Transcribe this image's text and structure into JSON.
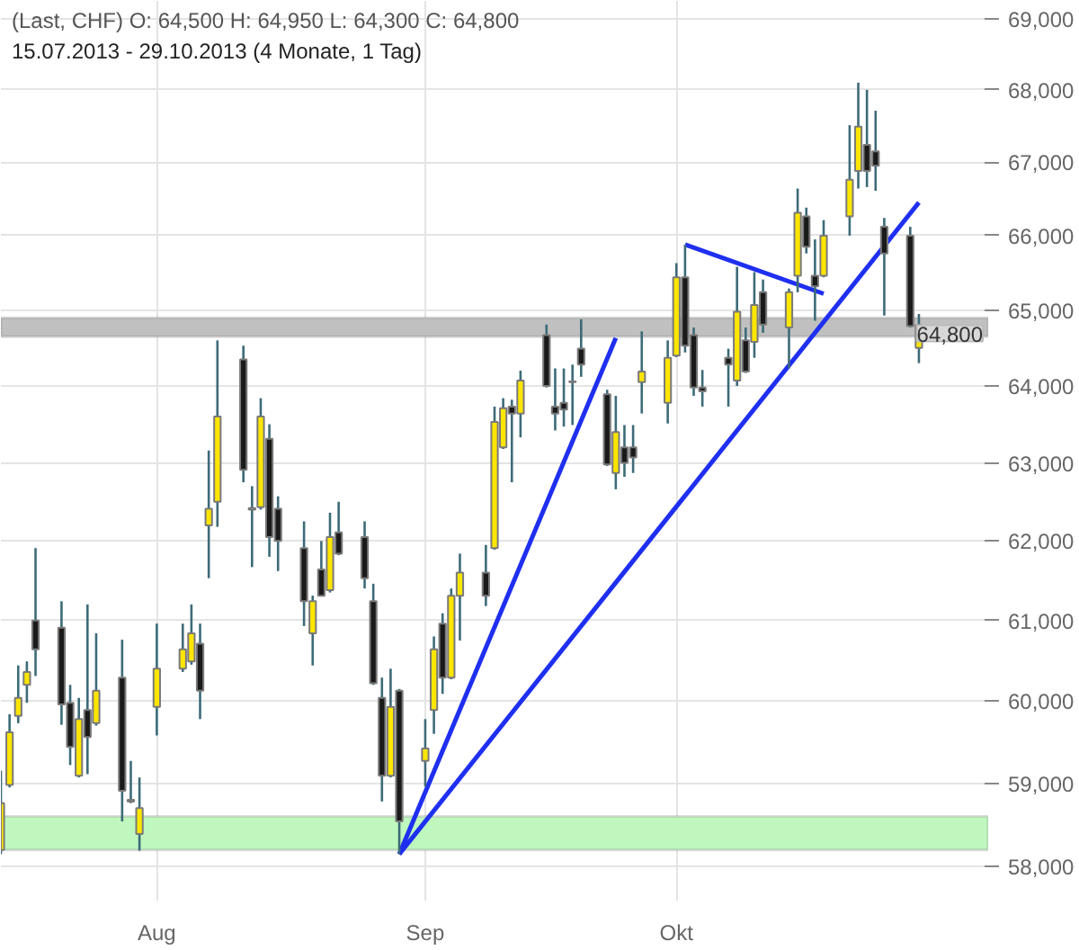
{
  "chart_data": {
    "type": "candlestick",
    "title": "(Last, CHF)  O: 64,500  H: 64,950  L: 64,300  C: 64,800",
    "subtitle": "15.07.2013 - 29.10.2013 (4 Monate, 1 Tag)",
    "x": [
      "2013-07-15",
      "2013-07-16",
      "2013-07-17",
      "2013-07-18",
      "2013-07-19",
      "2013-07-22",
      "2013-07-23",
      "2013-07-24",
      "2013-07-25",
      "2013-07-26",
      "2013-07-29",
      "2013-07-30",
      "2013-07-31",
      "2013-08-02",
      "2013-08-05",
      "2013-08-06",
      "2013-08-07",
      "2013-08-08",
      "2013-08-09",
      "2013-08-12",
      "2013-08-13",
      "2013-08-14",
      "2013-08-15",
      "2013-08-16",
      "2013-08-19",
      "2013-08-20",
      "2013-08-21",
      "2013-08-22",
      "2013-08-23",
      "2013-08-26",
      "2013-08-27",
      "2013-08-28",
      "2013-08-29",
      "2013-08-30",
      "2013-09-02",
      "2013-09-03",
      "2013-09-04",
      "2013-09-05",
      "2013-09-06",
      "2013-09-09",
      "2013-09-10",
      "2013-09-11",
      "2013-09-12",
      "2013-09-13",
      "2013-09-16",
      "2013-09-17",
      "2013-09-18",
      "2013-09-19",
      "2013-09-20",
      "2013-09-23",
      "2013-09-24",
      "2013-09-25",
      "2013-09-26",
      "2013-09-27",
      "2013-09-30",
      "2013-10-01",
      "2013-10-02",
      "2013-10-03",
      "2013-10-04",
      "2013-10-07",
      "2013-10-08",
      "2013-10-09",
      "2013-10-10",
      "2013-10-11",
      "2013-10-14",
      "2013-10-15",
      "2013-10-16",
      "2013-10-17",
      "2013-10-18",
      "2013-10-21",
      "2013-10-22",
      "2013-10-23",
      "2013-10-24",
      "2013-10-25",
      "2013-10-28",
      "2013-10-29"
    ],
    "ohlc": [
      [
        58200,
        59150,
        58150,
        58760
      ],
      [
        58980,
        59840,
        58950,
        59620
      ],
      [
        59820,
        60440,
        59730,
        60040
      ],
      [
        60200,
        60490,
        59980,
        60360
      ],
      [
        61000,
        61910,
        60310,
        60640
      ],
      [
        60910,
        61240,
        59710,
        59960
      ],
      [
        59980,
        60200,
        59220,
        59440
      ],
      [
        59090,
        60040,
        59070,
        59780
      ],
      [
        59890,
        61200,
        59110,
        59560
      ],
      [
        59730,
        60840,
        59700,
        60130
      ],
      [
        60290,
        60760,
        58540,
        58910
      ],
      [
        58800,
        59270,
        58760,
        58780
      ],
      [
        58390,
        59070,
        58190,
        58700
      ],
      [
        59930,
        60960,
        59580,
        60400
      ],
      [
        60400,
        60960,
        60360,
        60640
      ],
      [
        60490,
        61200,
        60450,
        60840
      ],
      [
        60710,
        60960,
        59780,
        60130
      ],
      [
        62200,
        63160,
        61530,
        62410
      ],
      [
        62500,
        64600,
        62180,
        63600
      ],
      [
        64350,
        64530,
        62750,
        62910
      ],
      [
        62420,
        62700,
        61670,
        62400
      ],
      [
        62430,
        63840,
        62400,
        63600
      ],
      [
        63310,
        63500,
        61800,
        62050
      ],
      [
        62410,
        62570,
        61620,
        62000
      ],
      [
        61910,
        62250,
        60930,
        61240
      ],
      [
        60840,
        61310,
        60440,
        61240
      ],
      [
        61640,
        62000,
        61300,
        61310
      ],
      [
        61380,
        62360,
        61350,
        62050
      ],
      [
        62110,
        62500,
        61820,
        61840
      ],
      [
        62050,
        62250,
        61400,
        61530
      ],
      [
        61240,
        61460,
        60200,
        60220
      ],
      [
        60040,
        60290,
        58780,
        59090
      ],
      [
        59090,
        60400,
        59070,
        59930
      ],
      [
        60130,
        60150,
        58150,
        58540
      ],
      [
        59270,
        59780,
        58960,
        59420
      ],
      [
        59890,
        60800,
        59600,
        60640
      ],
      [
        60960,
        61090,
        60090,
        60290
      ],
      [
        60290,
        61400,
        60270,
        61310
      ],
      [
        61310,
        61840,
        60750,
        61600
      ],
      [
        61600,
        61950,
        61180,
        61310
      ],
      [
        61910,
        63730,
        61890,
        63530
      ],
      [
        63200,
        63840,
        63180,
        63710
      ],
      [
        63730,
        63820,
        62750,
        63640
      ],
      [
        63640,
        64200,
        63330,
        64070
      ],
      [
        64670,
        64810,
        63980,
        64000
      ],
      [
        63730,
        64230,
        63420,
        63640
      ],
      [
        63780,
        64230,
        63470,
        63690
      ],
      [
        64060,
        64280,
        63490,
        64050
      ],
      [
        64490,
        64880,
        64120,
        64280
      ],
      [
        63890,
        63950,
        62960,
        62980
      ],
      [
        62870,
        63870,
        62660,
        63400
      ],
      [
        63200,
        63490,
        62820,
        63000
      ],
      [
        63200,
        63490,
        62870,
        63070
      ],
      [
        64050,
        64720,
        63640,
        64190
      ],
      [
        63780,
        64600,
        63510,
        64370
      ],
      [
        64400,
        65630,
        64380,
        65440
      ],
      [
        65440,
        65880,
        64440,
        64530
      ],
      [
        64670,
        64770,
        63870,
        63980
      ],
      [
        63980,
        64210,
        63730,
        63930
      ],
      [
        64370,
        64490,
        63730,
        64280
      ],
      [
        64070,
        65580,
        64000,
        64980
      ],
      [
        64600,
        64770,
        64170,
        64190
      ],
      [
        64580,
        65510,
        64370,
        65070
      ],
      [
        65240,
        65410,
        64700,
        64810
      ],
      [
        64770,
        65290,
        64230,
        65240
      ],
      [
        65460,
        66640,
        65240,
        66310
      ],
      [
        66260,
        66380,
        65760,
        65850
      ],
      [
        65460,
        65950,
        64860,
        65320
      ],
      [
        65460,
        66210,
        65440,
        66000
      ],
      [
        66260,
        67510,
        66000,
        66760
      ],
      [
        66880,
        68100,
        66640,
        67490
      ],
      [
        67240,
        68000,
        66660,
        66880
      ],
      [
        67150,
        67710,
        66610,
        66950
      ],
      [
        66120,
        66240,
        64930,
        65760
      ],
      [
        66000,
        66120,
        64770,
        64790
      ],
      [
        64500,
        64950,
        64300,
        64800
      ]
    ],
    "colors": [
      "#ffe600",
      "#ffe600",
      "#ffe600",
      "#ffe600",
      "#1a1a1a",
      "#1a1a1a",
      "#1a1a1a",
      "#ffe600",
      "#1a1a1a",
      "#ffe600",
      "#1a1a1a",
      "#1a1a1a",
      "#ffe600",
      "#ffe600",
      "#ffe600",
      "#ffe600",
      "#1a1a1a",
      "#ffe600",
      "#ffe600",
      "#1a1a1a",
      "#1a1a1a",
      "#ffe600",
      "#1a1a1a",
      "#1a1a1a",
      "#1a1a1a",
      "#ffe600",
      "#1a1a1a",
      "#ffe600",
      "#1a1a1a",
      "#1a1a1a",
      "#1a1a1a",
      "#1a1a1a",
      "#ffe600",
      "#1a1a1a",
      "#ffe600",
      "#ffe600",
      "#1a1a1a",
      "#ffe600",
      "#ffe600",
      "#1a1a1a",
      "#ffe600",
      "#ffe600",
      "#1a1a1a",
      "#ffe600",
      "#1a1a1a",
      "#1a1a1a",
      "#1a1a1a",
      "#1a1a1a",
      "#1a1a1a",
      "#1a1a1a",
      "#ffe600",
      "#1a1a1a",
      "#1a1a1a",
      "#ffe600",
      "#ffe600",
      "#ffe600",
      "#1a1a1a",
      "#1a1a1a",
      "#1a1a1a",
      "#1a1a1a",
      "#ffe600",
      "#1a1a1a",
      "#ffe600",
      "#1a1a1a",
      "#ffe600",
      "#ffe600",
      "#1a1a1a",
      "#1a1a1a",
      "#ffe600",
      "#ffe600",
      "#ffe600",
      "#1a1a1a",
      "#1a1a1a",
      "#1a1a1a",
      "#1a1a1a",
      "#ffe600"
    ],
    "series": [
      {
        "type": "line",
        "color": "#1f2ff0",
        "x": [
          "2013-08-30",
          "2013-09-24"
        ],
        "values": [
          58150,
          64630
        ]
      },
      {
        "type": "line",
        "color": "#1f2ff0",
        "x": [
          "2013-08-30",
          "2013-10-29"
        ],
        "values": [
          58150,
          66450
        ]
      },
      {
        "type": "line",
        "color": "#1f2ff0",
        "x": [
          "2013-10-02",
          "2013-10-18"
        ],
        "values": [
          65880,
          65220
        ]
      }
    ],
    "bands": [
      {
        "axis": "y",
        "from": 64650,
        "to": 64900,
        "color": "#c0c0c0"
      },
      {
        "axis": "y",
        "from": 58200,
        "to": 58600,
        "color": "#bff7bf"
      }
    ],
    "annotations": [
      {
        "text": "64,800",
        "y": 64800
      }
    ],
    "log": "y",
    "grid": true,
    "xlim": [
      "2013-07-15",
      "2013-11-06"
    ],
    "xticks": [
      {
        "value": "2013-08-02",
        "label": "Aug"
      },
      {
        "value": "2013-09-02",
        "label": "Sep"
      },
      {
        "value": "2013-10-01",
        "label": "Okt"
      }
    ],
    "ylim": [
      57600,
      69250
    ],
    "yticks": [
      {
        "value": 58000,
        "label": "58,000"
      },
      {
        "value": 59000,
        "label": "59,000"
      },
      {
        "value": 60000,
        "label": "60,000"
      },
      {
        "value": 61000,
        "label": "61,000"
      },
      {
        "value": 62000,
        "label": "62,000"
      },
      {
        "value": 63000,
        "label": "63,000"
      },
      {
        "value": 64000,
        "label": "64,000"
      },
      {
        "value": 65000,
        "label": "65,000"
      },
      {
        "value": 66000,
        "label": "66,000"
      },
      {
        "value": 67000,
        "label": "67,000"
      },
      {
        "value": 68000,
        "label": "68,000"
      },
      {
        "value": 69000,
        "label": "69,000"
      }
    ]
  }
}
